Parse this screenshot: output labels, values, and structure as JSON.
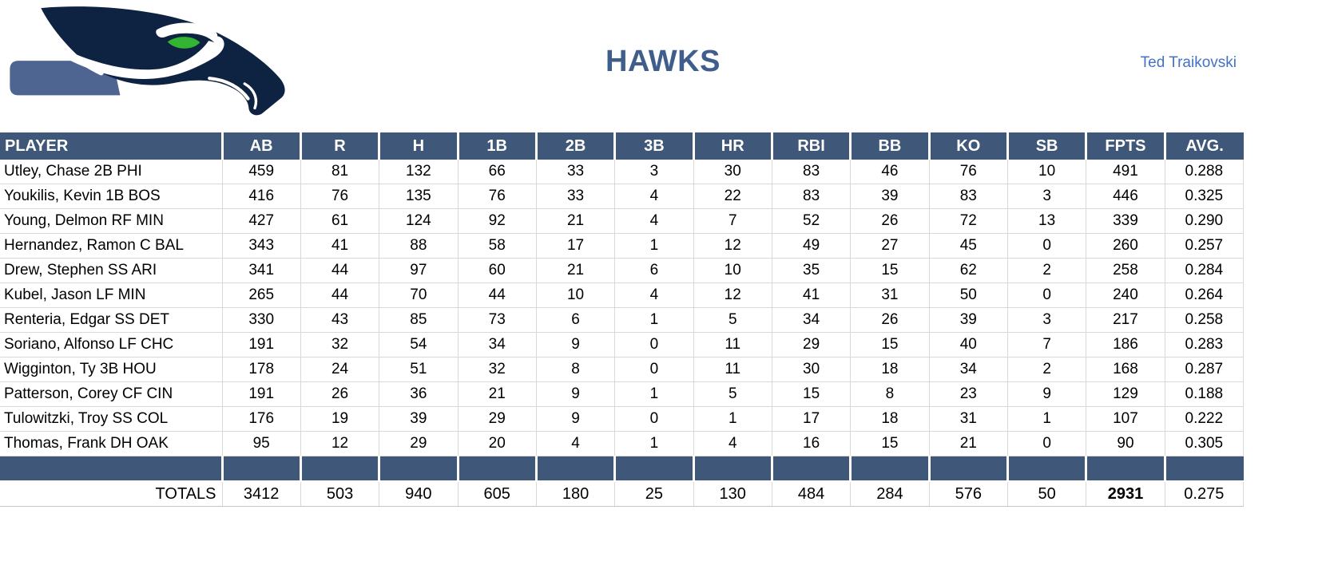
{
  "header": {
    "title": "HAWKS",
    "owner": "Ted Traikovski"
  },
  "colors": {
    "header_bg": "#3F5778",
    "title_text": "#3F5E8C",
    "owner_text": "#4472C4",
    "logo_navy": "#0E2341",
    "logo_band_blue": "#4D6590",
    "logo_eye_green": "#33B533",
    "grid_line": "#D9D9D9"
  },
  "table": {
    "columns": [
      "PLAYER",
      "AB",
      "R",
      "H",
      "1B",
      "2B",
      "3B",
      "HR",
      "RBI",
      "BB",
      "KO",
      "SB",
      "FPTS",
      "AVG."
    ],
    "rows": [
      {
        "player": "Utley, Chase 2B PHI",
        "stats": [
          "459",
          "81",
          "132",
          "66",
          "33",
          "3",
          "30",
          "83",
          "46",
          "76",
          "10",
          "491",
          "0.288"
        ]
      },
      {
        "player": "Youkilis, Kevin 1B BOS",
        "stats": [
          "416",
          "76",
          "135",
          "76",
          "33",
          "4",
          "22",
          "83",
          "39",
          "83",
          "3",
          "446",
          "0.325"
        ]
      },
      {
        "player": "Young, Delmon RF MIN",
        "stats": [
          "427",
          "61",
          "124",
          "92",
          "21",
          "4",
          "7",
          "52",
          "26",
          "72",
          "13",
          "339",
          "0.290"
        ]
      },
      {
        "player": "Hernandez, Ramon C BAL",
        "stats": [
          "343",
          "41",
          "88",
          "58",
          "17",
          "1",
          "12",
          "49",
          "27",
          "45",
          "0",
          "260",
          "0.257"
        ]
      },
      {
        "player": "Drew, Stephen SS ARI",
        "stats": [
          "341",
          "44",
          "97",
          "60",
          "21",
          "6",
          "10",
          "35",
          "15",
          "62",
          "2",
          "258",
          "0.284"
        ]
      },
      {
        "player": "Kubel, Jason LF MIN",
        "stats": [
          "265",
          "44",
          "70",
          "44",
          "10",
          "4",
          "12",
          "41",
          "31",
          "50",
          "0",
          "240",
          "0.264"
        ]
      },
      {
        "player": "Renteria, Edgar SS DET",
        "stats": [
          "330",
          "43",
          "85",
          "73",
          "6",
          "1",
          "5",
          "34",
          "26",
          "39",
          "3",
          "217",
          "0.258"
        ]
      },
      {
        "player": "Soriano, Alfonso LF CHC",
        "stats": [
          "191",
          "32",
          "54",
          "34",
          "9",
          "0",
          "11",
          "29",
          "15",
          "40",
          "7",
          "186",
          "0.283"
        ]
      },
      {
        "player": "Wigginton, Ty 3B HOU",
        "stats": [
          "178",
          "24",
          "51",
          "32",
          "8",
          "0",
          "11",
          "30",
          "18",
          "34",
          "2",
          "168",
          "0.287"
        ]
      },
      {
        "player": "Patterson, Corey CF CIN",
        "stats": [
          "191",
          "26",
          "36",
          "21",
          "9",
          "1",
          "5",
          "15",
          "8",
          "23",
          "9",
          "129",
          "0.188"
        ]
      },
      {
        "player": "Tulowitzki, Troy SS COL",
        "stats": [
          "176",
          "19",
          "39",
          "29",
          "9",
          "0",
          "1",
          "17",
          "18",
          "31",
          "1",
          "107",
          "0.222"
        ]
      },
      {
        "player": "Thomas, Frank DH OAK",
        "stats": [
          "95",
          "12",
          "29",
          "20",
          "4",
          "1",
          "4",
          "16",
          "15",
          "21",
          "0",
          "90",
          "0.305"
        ]
      }
    ],
    "totals_label": "TOTALS",
    "totals": [
      "3412",
      "503",
      "940",
      "605",
      "180",
      "25",
      "130",
      "484",
      "284",
      "576",
      "50",
      "2931",
      "0.275"
    ]
  }
}
